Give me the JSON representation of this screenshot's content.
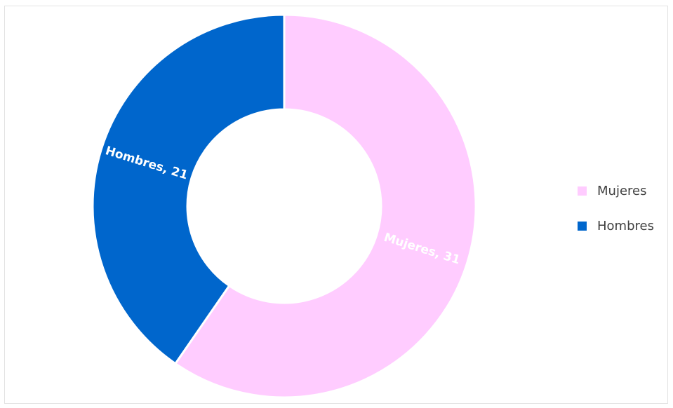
{
  "chart_data": {
    "type": "pie",
    "style": "donut",
    "categories": [
      "Mujeres",
      "Hombres"
    ],
    "values": [
      31,
      21
    ],
    "colors": [
      "#ffccff",
      "#0066cc"
    ],
    "data_labels": [
      "Mujeres, 31",
      "Hombres, 21"
    ],
    "data_label_colors": [
      "#ffffff",
      "#ffffff"
    ],
    "legend": {
      "position": "right",
      "items": [
        {
          "label": "Mujeres",
          "color": "#ffccff"
        },
        {
          "label": "Hombres",
          "color": "#0066cc"
        }
      ]
    },
    "title": ""
  }
}
